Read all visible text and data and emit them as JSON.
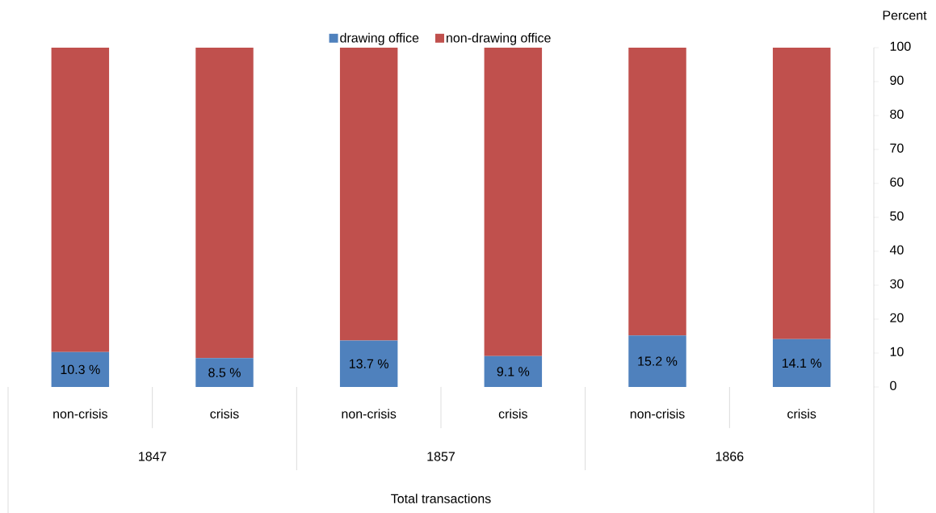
{
  "chart_data": {
    "type": "bar",
    "stacked": true,
    "categories": [
      "non-crisis",
      "crisis",
      "non-crisis",
      "crisis",
      "non-crisis",
      "crisis"
    ],
    "annotations": [
      "1847",
      "1857",
      "1866",
      "Total transactions"
    ],
    "ylabel": "Percent",
    "series": [
      {
        "name": "drawing office",
        "color": "#4f81bd",
        "values": [
          10.3,
          8.5,
          13.7,
          9.1,
          15.2,
          14.1
        ],
        "value_labels": [
          "10.3 %",
          "8.5 %",
          "13.7 %",
          "9.1 %",
          "15.2 %",
          "14.1 %"
        ]
      },
      {
        "name": "non-drawing office",
        "color": "#c0504d",
        "values": [
          89.7,
          91.5,
          86.3,
          90.9,
          84.8,
          85.9
        ]
      }
    ],
    "ylim": [
      0,
      100
    ],
    "yticks": [
      0,
      10,
      20,
      30,
      40,
      50,
      60,
      70,
      80,
      90,
      100
    ],
    "grid": false,
    "legend": "top"
  }
}
